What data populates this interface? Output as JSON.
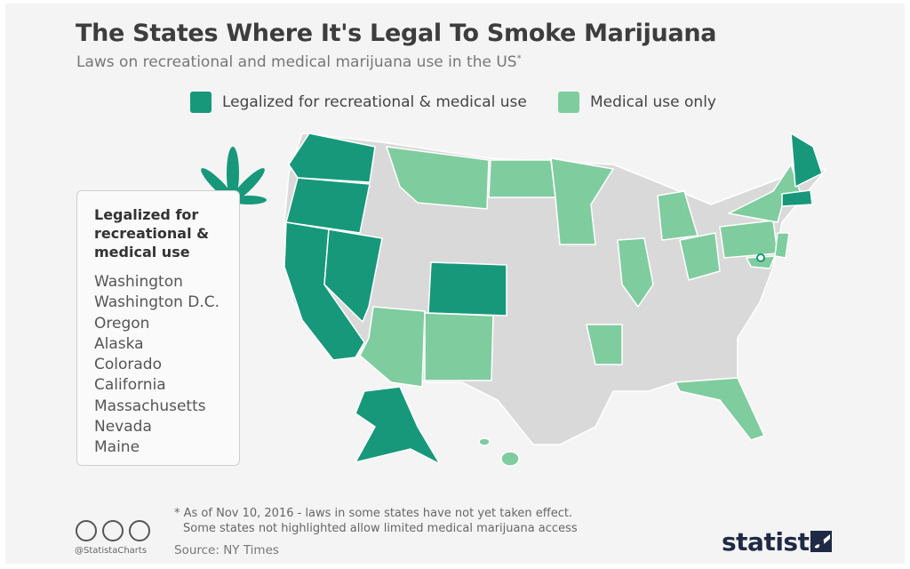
{
  "header": {
    "title": "The States Where It's Legal To Smoke Marijuana",
    "subtitle": "Laws on recreational and medical marijuana use in the US",
    "subtitle_mark": "*"
  },
  "legend": [
    {
      "label": "Legalized for recreational & medical use",
      "color": "#17987a"
    },
    {
      "label": "Medical use only",
      "color": "#7fcc9f"
    }
  ],
  "sidebar": {
    "heading": "Legalized for recreational & medical use",
    "states": [
      "Washington",
      "Washington D.C.",
      "Oregon",
      "Alaska",
      "Colorado",
      "California",
      "Massachusetts",
      "Nevada",
      "Maine"
    ]
  },
  "footer": {
    "note_line1": "* As  of Nov 10, 2016 - laws in some states have not yet taken effect.",
    "note_line2": "Some states not highlighted allow limited medical marijuana access",
    "source": "Source: NY Times",
    "handle": "@StatistaCharts",
    "brand": "statista"
  }
}
